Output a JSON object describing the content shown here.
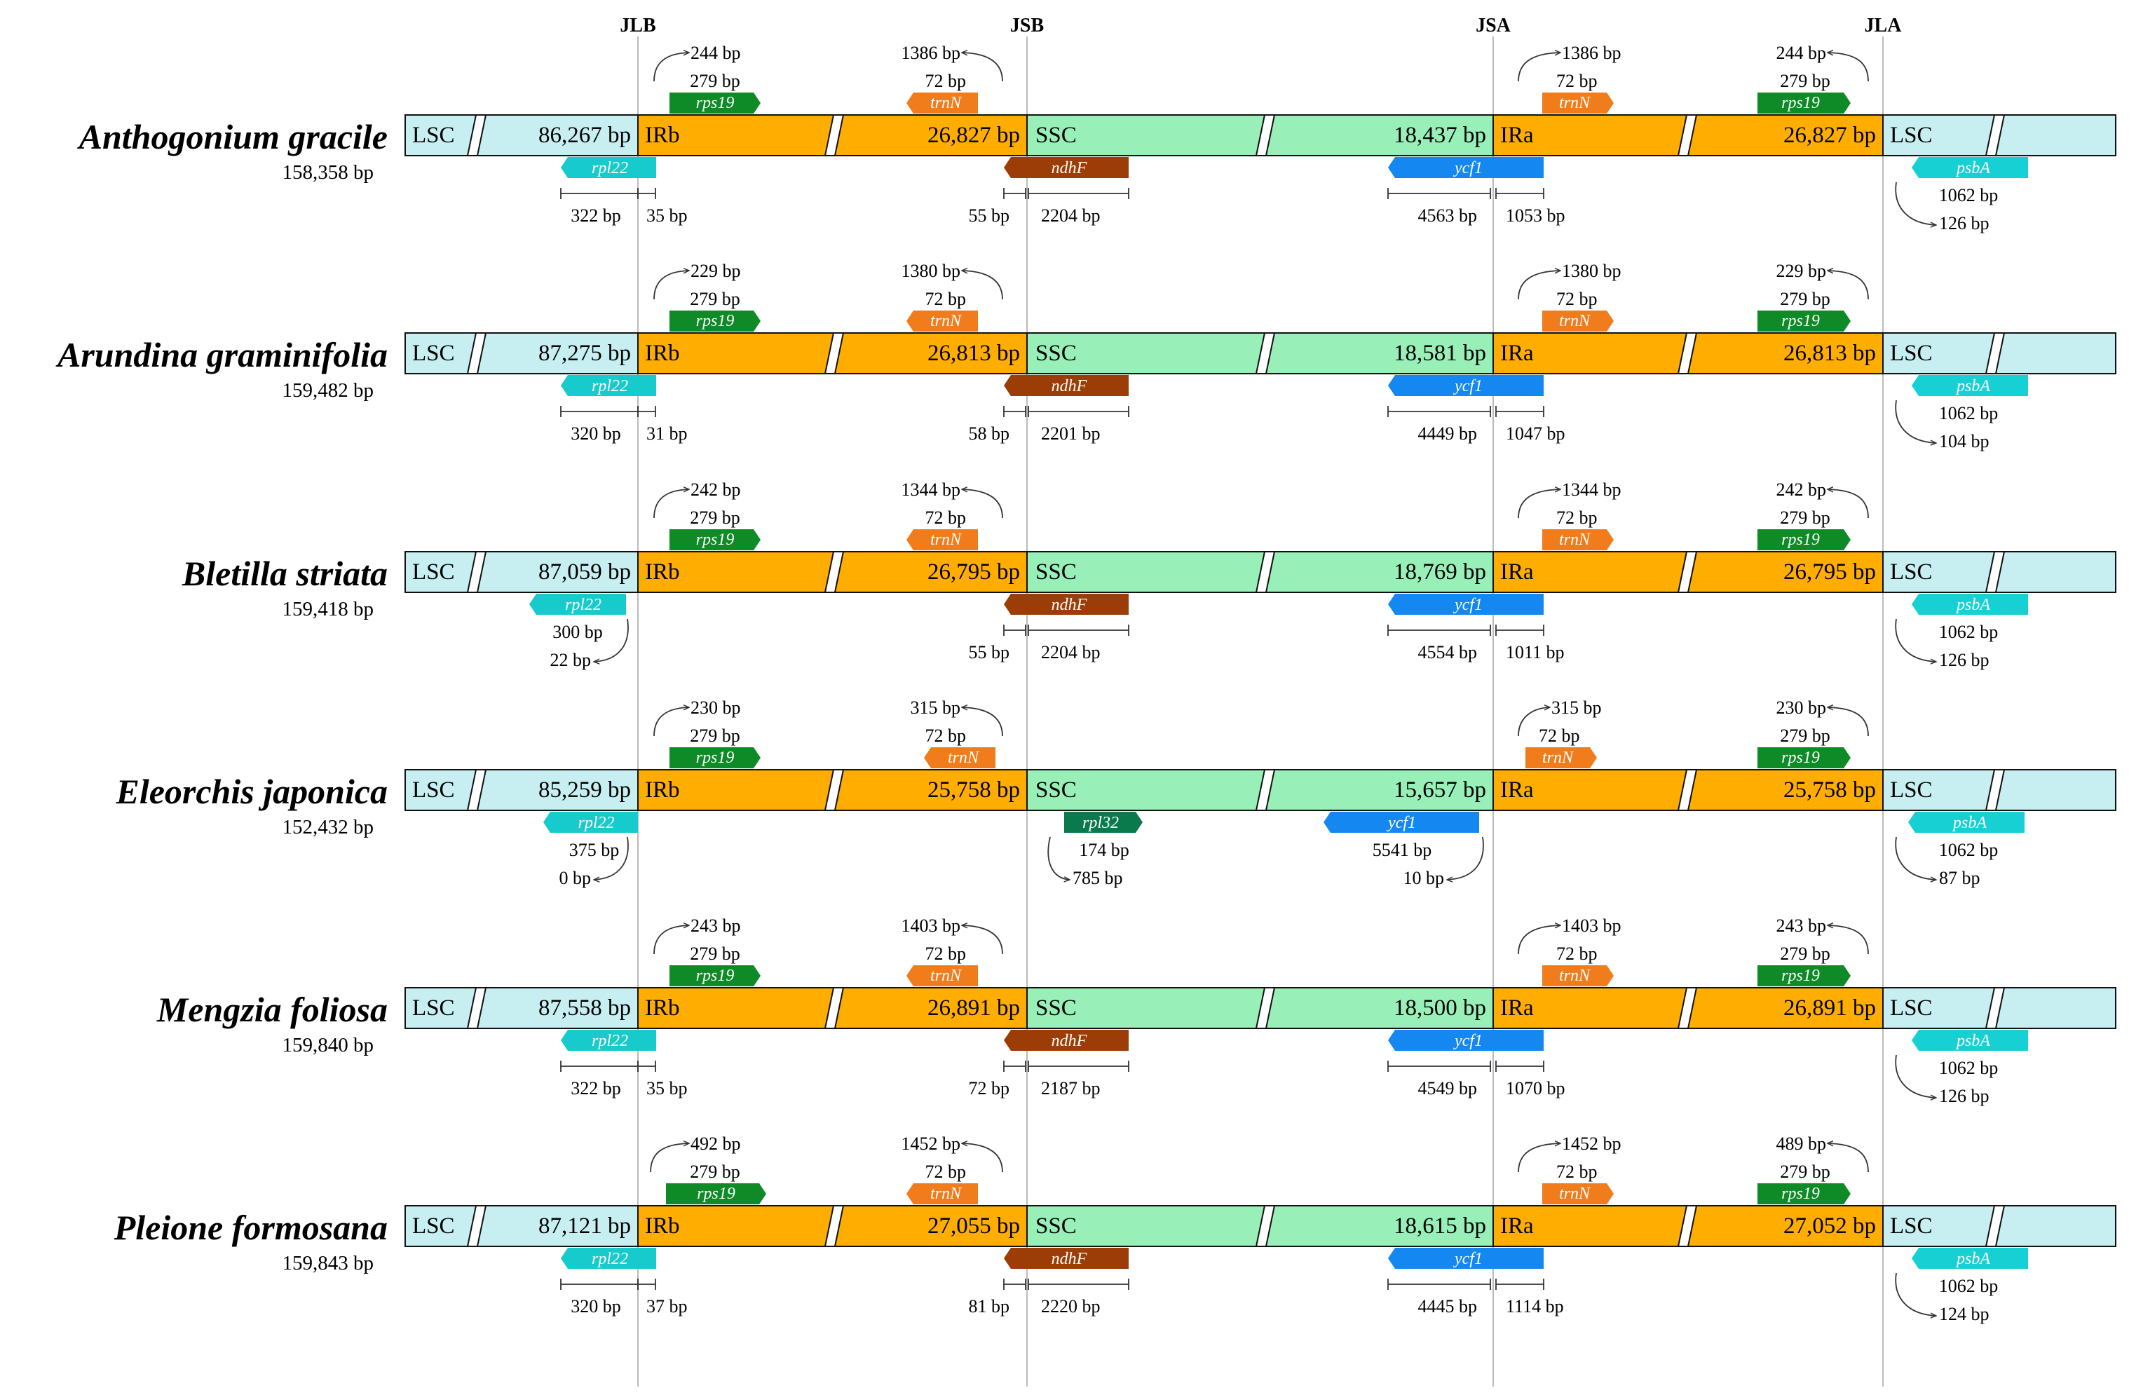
{
  "colors": {
    "lsc": "#c7eef0",
    "ir": "#ffad00",
    "ssc": "#98efb8",
    "rps19": "#0e8a26",
    "trnN": "#f07c1c",
    "ndhF": "#9c3c06",
    "rpl22": "#17cacb",
    "ycf1": "#1488f0",
    "psbA": "#17d0d3",
    "rpl32": "#0a7a4c"
  },
  "junctions": [
    "JLB",
    "JSB",
    "JSA",
    "JLA"
  ],
  "region_labels": {
    "lsc": "LSC",
    "irb": "IRb",
    "ssc": "SSC",
    "ira": "IRa"
  },
  "species": [
    {
      "name": "Anthogonium gracile",
      "total": "158,358 bp",
      "lsc_len": "86,267 bp",
      "irb_len": "26,827 bp",
      "ssc_len": "18,437 bp",
      "ira_len": "26,827 bp",
      "rps19_b": {
        "gene": "rps19",
        "len": "279 bp",
        "dist": "244 bp"
      },
      "trnN_b": {
        "gene": "trnN",
        "len": "72 bp",
        "dist": "1386 bp"
      },
      "trnN_a": {
        "gene": "trnN",
        "len": "72 bp",
        "dist": "1386 bp"
      },
      "rps19_a": {
        "gene": "rps19",
        "len": "279 bp",
        "dist": "244 bp"
      },
      "rpl22": {
        "gene": "rpl22",
        "left": "322 bp",
        "right": "35 bp"
      },
      "ndhF": {
        "gene": "ndhF",
        "left": "55 bp",
        "right": "2204 bp"
      },
      "ycf1": {
        "gene": "ycf1",
        "left": "4563 bp",
        "right": "1053 bp"
      },
      "psbA": {
        "gene": "psbA",
        "len": "1062 bp",
        "dist": "126 bp"
      }
    },
    {
      "name": "Arundina graminifolia",
      "total": "159,482 bp",
      "lsc_len": "87,275 bp",
      "irb_len": "26,813 bp",
      "ssc_len": "18,581 bp",
      "ira_len": "26,813 bp",
      "rps19_b": {
        "gene": "rps19",
        "len": "279 bp",
        "dist": "229 bp"
      },
      "trnN_b": {
        "gene": "trnN",
        "len": "72 bp",
        "dist": "1380 bp"
      },
      "trnN_a": {
        "gene": "trnN",
        "len": "72 bp",
        "dist": "1380 bp"
      },
      "rps19_a": {
        "gene": "rps19",
        "len": "279 bp",
        "dist": "229 bp"
      },
      "rpl22": {
        "gene": "rpl22",
        "left": "320 bp",
        "right": "31 bp"
      },
      "ndhF": {
        "gene": "ndhF",
        "left": "58 bp",
        "right": "2201 bp"
      },
      "ycf1": {
        "gene": "ycf1",
        "left": "4449 bp",
        "right": "1047 bp"
      },
      "psbA": {
        "gene": "psbA",
        "len": "1062 bp",
        "dist": "104 bp"
      }
    },
    {
      "name": "Bletilla striata",
      "total": "159,418 bp",
      "lsc_len": "87,059 bp",
      "irb_len": "26,795 bp",
      "ssc_len": "18,769 bp",
      "ira_len": "26,795 bp",
      "rps19_b": {
        "gene": "rps19",
        "len": "279 bp",
        "dist": "242 bp"
      },
      "trnN_b": {
        "gene": "trnN",
        "len": "72 bp",
        "dist": "1344 bp"
      },
      "trnN_a": {
        "gene": "trnN",
        "len": "72 bp",
        "dist": "1344 bp"
      },
      "rps19_a": {
        "gene": "rps19",
        "len": "279 bp",
        "dist": "242 bp"
      },
      "rpl22": {
        "gene": "rpl22",
        "len": "300 bp",
        "dist": "22 bp"
      },
      "ndhF": {
        "gene": "ndhF",
        "left": "55 bp",
        "right": "2204 bp"
      },
      "ycf1": {
        "gene": "ycf1",
        "left": "4554 bp",
        "right": "1011 bp"
      },
      "psbA": {
        "gene": "psbA",
        "len": "1062 bp",
        "dist": "126 bp"
      }
    },
    {
      "name": "Eleorchis japonica",
      "total": "152,432 bp",
      "lsc_len": "85,259 bp",
      "irb_len": "25,758 bp",
      "ssc_len": "15,657 bp",
      "ira_len": "25,758 bp",
      "rps19_b": {
        "gene": "rps19",
        "len": "279 bp",
        "dist": "230 bp"
      },
      "trnN_b": {
        "gene": "trnN",
        "len": "72 bp",
        "dist": "315 bp"
      },
      "trnN_a": {
        "gene": "trnN",
        "len": "72 bp",
        "dist": "315 bp"
      },
      "rps19_a": {
        "gene": "rps19",
        "len": "279 bp",
        "dist": "230 bp"
      },
      "rpl22": {
        "gene": "rpl22",
        "len": "375 bp",
        "dist": "0 bp"
      },
      "rpl32": {
        "gene": "rpl32",
        "len": "174 bp",
        "dist": "785 bp"
      },
      "ycf1": {
        "gene": "ycf1",
        "len": "5541 bp",
        "dist": "10 bp"
      },
      "psbA": {
        "gene": "psbA",
        "len": "1062 bp",
        "dist": "87 bp"
      }
    },
    {
      "name": "Mengzia foliosa",
      "total": "159,840 bp",
      "lsc_len": "87,558 bp",
      "irb_len": "26,891 bp",
      "ssc_len": "18,500 bp",
      "ira_len": "26,891 bp",
      "rps19_b": {
        "gene": "rps19",
        "len": "279 bp",
        "dist": "243 bp"
      },
      "trnN_b": {
        "gene": "trnN",
        "len": "72 bp",
        "dist": "1403 bp"
      },
      "trnN_a": {
        "gene": "trnN",
        "len": "72 bp",
        "dist": "1403 bp"
      },
      "rps19_a": {
        "gene": "rps19",
        "len": "279 bp",
        "dist": "243 bp"
      },
      "rpl22": {
        "gene": "rpl22",
        "left": "322 bp",
        "right": "35 bp"
      },
      "ndhF": {
        "gene": "ndhF",
        "left": "72 bp",
        "right": "2187 bp"
      },
      "ycf1": {
        "gene": "ycf1",
        "left": "4549 bp",
        "right": "1070 bp"
      },
      "psbA": {
        "gene": "psbA",
        "len": "1062 bp",
        "dist": "126 bp"
      }
    },
    {
      "name": "Pleione formosana",
      "total": "159,843 bp",
      "lsc_len": "87,121 bp",
      "irb_len": "27,055 bp",
      "ssc_len": "18,615 bp",
      "ira_len": "27,052 bp",
      "rps19_b": {
        "gene": "rps19",
        "len": "279 bp",
        "dist": "492 bp"
      },
      "trnN_b": {
        "gene": "trnN",
        "len": "72 bp",
        "dist": "1452 bp"
      },
      "trnN_a": {
        "gene": "trnN",
        "len": "72 bp",
        "dist": "1452 bp"
      },
      "rps19_a": {
        "gene": "rps19",
        "len": "279 bp",
        "dist": "489 bp"
      },
      "rpl22": {
        "gene": "rpl22",
        "left": "320 bp",
        "right": "37 bp"
      },
      "ndhF": {
        "gene": "ndhF",
        "left": "81 bp",
        "right": "2220 bp"
      },
      "ycf1": {
        "gene": "ycf1",
        "left": "4445 bp",
        "right": "1114 bp"
      },
      "psbA": {
        "gene": "psbA",
        "len": "1062 bp",
        "dist": "124 bp"
      }
    }
  ]
}
